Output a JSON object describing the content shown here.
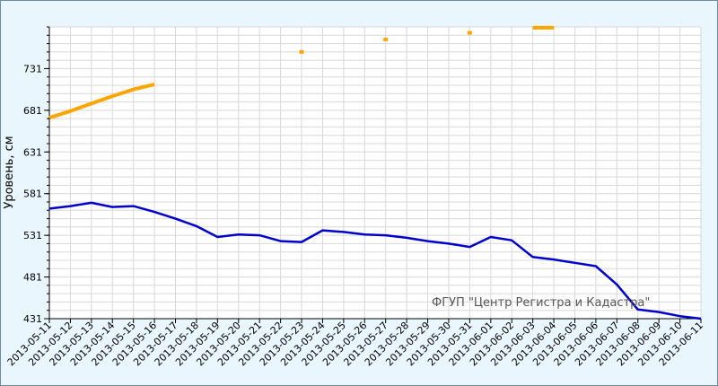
{
  "chart_data": {
    "type": "line",
    "ylabel": "Уровень, см",
    "watermark": "ФГУП \"Центр Регистра и Кадастра\"",
    "ylim": [
      431,
      781
    ],
    "yticks": [
      431,
      481,
      531,
      581,
      631,
      681,
      731
    ],
    "x_range": [
      "2013-05-11",
      "2013-06-11"
    ],
    "xticks": [
      "2013-05-11",
      "2013-05-12",
      "2013-05-13",
      "2013-05-14",
      "2013-05-15",
      "2013-05-16",
      "2013-05-17",
      "2013-05-18",
      "2013-05-19",
      "2013-05-20",
      "2013-05-21",
      "2013-05-22",
      "2013-05-23",
      "2013-05-24",
      "2013-05-25",
      "2013-05-26",
      "2013-05-27",
      "2013-05-28",
      "2013-05-29",
      "2013-05-30",
      "2013-05-31",
      "2013-06-01",
      "2013-06-02",
      "2013-06-03",
      "2013-06-04",
      "2013-06-05",
      "2013-06-06",
      "2013-06-07",
      "2013-06-08",
      "2013-06-09",
      "2013-06-10",
      "2013-06-11"
    ],
    "grid": true,
    "colors": {
      "blue": "#0000cc",
      "orange": "#ffa500",
      "grid": "#d8d8d8",
      "plot_bg": "#ffffff"
    },
    "series": [
      {
        "color": "#0000cc",
        "style": "line",
        "points": [
          [
            "2013-05-11",
            563
          ],
          [
            "2013-05-12",
            566
          ],
          [
            "2013-05-13",
            570
          ],
          [
            "2013-05-14",
            565
          ],
          [
            "2013-05-15",
            566
          ],
          [
            "2013-05-16",
            559
          ],
          [
            "2013-05-17",
            551
          ],
          [
            "2013-05-18",
            542
          ],
          [
            "2013-05-19",
            529
          ],
          [
            "2013-05-20",
            532
          ],
          [
            "2013-05-21",
            531
          ],
          [
            "2013-05-22",
            524
          ],
          [
            "2013-05-23",
            523
          ],
          [
            "2013-05-24",
            537
          ],
          [
            "2013-05-25",
            535
          ],
          [
            "2013-05-26",
            532
          ],
          [
            "2013-05-27",
            531
          ],
          [
            "2013-05-28",
            528
          ],
          [
            "2013-05-29",
            524
          ],
          [
            "2013-05-30",
            521
          ],
          [
            "2013-05-31",
            517
          ],
          [
            "2013-06-01",
            529
          ],
          [
            "2013-06-02",
            525
          ],
          [
            "2013-06-03",
            505
          ],
          [
            "2013-06-04",
            502
          ],
          [
            "2013-06-05",
            498
          ],
          [
            "2013-06-06",
            494
          ],
          [
            "2013-06-07",
            472
          ],
          [
            "2013-06-08",
            442
          ],
          [
            "2013-06-09",
            439
          ],
          [
            "2013-06-10",
            434
          ],
          [
            "2013-06-11",
            431
          ]
        ]
      },
      {
        "color": "#ffa500",
        "style": "line",
        "points": [
          [
            "2013-05-11",
            672
          ],
          [
            "2013-05-12",
            680
          ],
          [
            "2013-05-13",
            689
          ],
          [
            "2013-05-14",
            698
          ],
          [
            "2013-05-15",
            706
          ],
          [
            "2013-05-16",
            712
          ]
        ]
      },
      {
        "color": "#ffa500",
        "style": "points",
        "points": [
          [
            "2013-05-23",
            751
          ],
          [
            "2013-05-27",
            766
          ],
          [
            "2013-05-31",
            774
          ]
        ]
      },
      {
        "color": "#ffa500",
        "style": "line",
        "points": [
          [
            "2013-06-03",
            780
          ],
          [
            "2013-06-04",
            780
          ]
        ]
      }
    ]
  }
}
